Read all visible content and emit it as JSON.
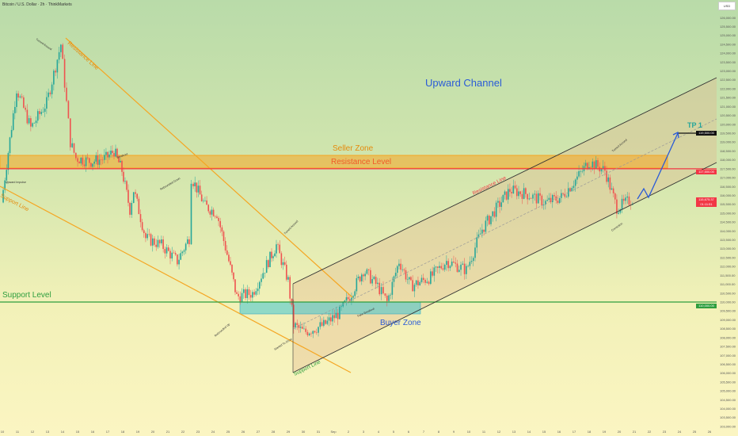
{
  "header": {
    "title": "Bitcoin / U.S. Dollar · 2h · ThinkMarkets",
    "currency": "USD"
  },
  "chart_data": {
    "type": "candlestick",
    "title": "Bitcoin / U.S. Dollar · 2h · ThinkMarkets",
    "ylim": [
      103000,
      126000
    ],
    "yticks": [
      "126,000.00",
      "125,500.00",
      "125,000.00",
      "124,500.00",
      "124,000.00",
      "123,500.00",
      "123,000.00",
      "122,500.00",
      "122,000.00",
      "121,500.00",
      "121,000.00",
      "120,500.00",
      "120,000.00",
      "119,500.00",
      "119,000.00",
      "118,500.00",
      "118,000.00",
      "117,500.00",
      "117,000.00",
      "116,500.00",
      "116,000.00",
      "115,500.00",
      "115,000.00",
      "114,500.00",
      "114,000.00",
      "113,500.00",
      "113,000.00",
      "112,500.00",
      "112,000.00",
      "111,500.00",
      "111,000.00",
      "110,500.00",
      "110,000.00",
      "109,500.00",
      "109,000.00",
      "108,500.00",
      "108,000.00",
      "107,500.00",
      "107,000.00",
      "106,500.00",
      "106,000.00",
      "105,500.00",
      "105,000.00",
      "104,500.00",
      "104,000.00",
      "103,500.00",
      "103,000.00"
    ],
    "xticks": [
      "10",
      "11",
      "12",
      "13",
      "14",
      "15",
      "16",
      "17",
      "18",
      "19",
      "20",
      "21",
      "22",
      "23",
      "24",
      "25",
      "26",
      "27",
      "28",
      "29",
      "30",
      "31",
      "Sep",
      "2",
      "3",
      "4",
      "5",
      "6",
      "7",
      "8",
      "9",
      "10",
      "11",
      "12",
      "13",
      "14",
      "15",
      "16",
      "17",
      "18",
      "19",
      "20",
      "21",
      "22",
      "23",
      "24",
      "25",
      "26"
    ],
    "price_path": {
      "dates": [
        "Aug 10",
        "Aug 11",
        "Aug 12",
        "Aug 13",
        "Aug 14",
        "Aug 14",
        "Aug 15",
        "Aug 16",
        "Aug 17",
        "Aug 17",
        "Aug 18",
        "Aug 18",
        "Aug 19",
        "Aug 20",
        "Aug 21",
        "Aug 21",
        "Aug 22",
        "Aug 22",
        "Aug 23",
        "Aug 24",
        "Aug 25",
        "Aug 26",
        "Aug 27",
        "Aug 28",
        "Aug 28",
        "Aug 29",
        "Aug 29",
        "Aug 30",
        "Aug 31",
        "Sep 1",
        "Sep 2",
        "Sep 3",
        "Sep 4",
        "Sep 5",
        "Sep 6",
        "Sep 7",
        "Sep 8",
        "Sep 9",
        "Sep 10",
        "Sep 11",
        "Sep 12",
        "Sep 13",
        "Sep 14",
        "Sep 15",
        "Sep 16",
        "Sep 17",
        "Sep 18",
        "Sep 19",
        "Sep 20",
        "Sep 21"
      ],
      "values": [
        115600,
        122000,
        119800,
        121200,
        124500,
        119000,
        118100,
        117900,
        118100,
        118500,
        117400,
        115200,
        116300,
        113600,
        113200,
        112300,
        113600,
        117000,
        115400,
        115000,
        112300,
        110300,
        110500,
        112300,
        113200,
        111200,
        108700,
        108300,
        108700,
        109400,
        110500,
        111800,
        110900,
        110000,
        112300,
        110900,
        111400,
        112300,
        111800,
        114100,
        115400,
        116300,
        116100,
        115600,
        115900,
        117000,
        117900,
        117400,
        115300,
        115800
      ]
    },
    "levels": [
      {
        "label": "119,500.00",
        "price": 119500,
        "color": "#111111"
      },
      {
        "label": "117,500.00",
        "price": 117500,
        "color": "#f23645"
      },
      {
        "label": "110,000.00",
        "price": 110000,
        "color": "#2e9e3e"
      }
    ],
    "last_price": {
      "label": "115,675.37",
      "countdown": "01:11:51",
      "color": "#f23645"
    },
    "candle_colors": {
      "up": "#26a69a",
      "down": "#ef5350"
    }
  },
  "annotations": {
    "upward_channel": "Upward Channel",
    "seller_zone": "Seller Zone",
    "resistance_level": "Resistance Level",
    "support_level": "Support Level",
    "buyer_zone": "Buyer Zone",
    "tp1": "TP 1",
    "support_line_left": "Support Line",
    "resistance_line_left": "Resistance Line",
    "support_line_channel": "Support Line",
    "resistance_line_channel": "Resistance Line",
    "notes": [
      "Turned Around",
      "Breakout",
      "Upward Impulse",
      "Rebounded Down",
      "Turned Around",
      "Rebounded Up",
      "Started To Grow",
      "Fake Breakout",
      "Turned Around",
      "Correction"
    ]
  },
  "colors": {
    "orange": "#f5a623",
    "red": "#f23645",
    "green": "#2e9e3e",
    "blue": "#2a5bd7",
    "teal": "#26a69a"
  }
}
